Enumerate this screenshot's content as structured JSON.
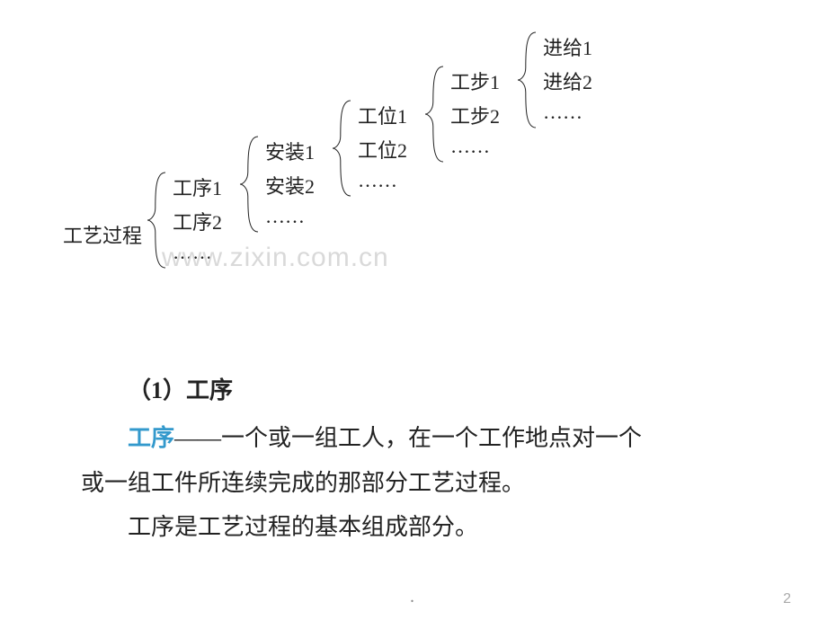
{
  "diagram": {
    "background_color": "#ffffff",
    "text_color": "#222222",
    "font_size_pt": 16,
    "line_color": "#222222",
    "line_width": 1,
    "levels": [
      {
        "label": "工艺过程",
        "label_css": "left:0px; top:185px;",
        "brace_css": "left:92px; top:130px; width:24px; height:110px;",
        "brace_h": 110,
        "items_css": "left:122px; top:132px;",
        "item_gap": 38,
        "items": [
          "工序1",
          "工序2",
          "……"
        ]
      },
      {
        "label": "",
        "label_css": "",
        "brace_css": "left:195px; top:90px; width:24px; height:110px;",
        "brace_h": 110,
        "items_css": "left:225px; top:92px;",
        "item_gap": 38,
        "items": [
          "安装1",
          "安装2",
          "……"
        ]
      },
      {
        "label": "",
        "label_css": "",
        "brace_css": "left:298px; top:50px; width:24px; height:110px;",
        "brace_h": 110,
        "items_css": "left:328px; top:52px;",
        "item_gap": 38,
        "items": [
          "工位1",
          "工位2",
          "……"
        ]
      },
      {
        "label": "",
        "label_css": "",
        "brace_css": "left:401px; top:12px; width:24px; height:110px;",
        "brace_h": 110,
        "items_css": "left:431px; top:14px;",
        "item_gap": 38,
        "items": [
          "工步1",
          "工步2",
          "……"
        ]
      },
      {
        "label": "",
        "label_css": "",
        "brace_css": "left:504px; top:-26px; width:24px; height:110px;",
        "brace_h": 110,
        "items_css": "left:534px; top:-24px;",
        "item_gap": 38,
        "items": [
          "进给1",
          "进给2",
          "……"
        ]
      }
    ]
  },
  "watermark": "www.zixin.com.cn",
  "body": {
    "section_label": "（1）工序",
    "keyword": "工序",
    "line1_rest": "——一个或一组工人，在一个工作地点对一个",
    "line2": "或一组工件所连续完成的那部分工艺过程。",
    "line3": "工序是工艺过程的基本组成部分。",
    "keyword_color": "#3399cc",
    "text_color": "#222222",
    "font_size_pt": 20,
    "line_height": 1.9
  },
  "footer": {
    "dot": ".",
    "page_number": "2",
    "dot_color": "#888888",
    "num_color": "#aaaaaa"
  }
}
